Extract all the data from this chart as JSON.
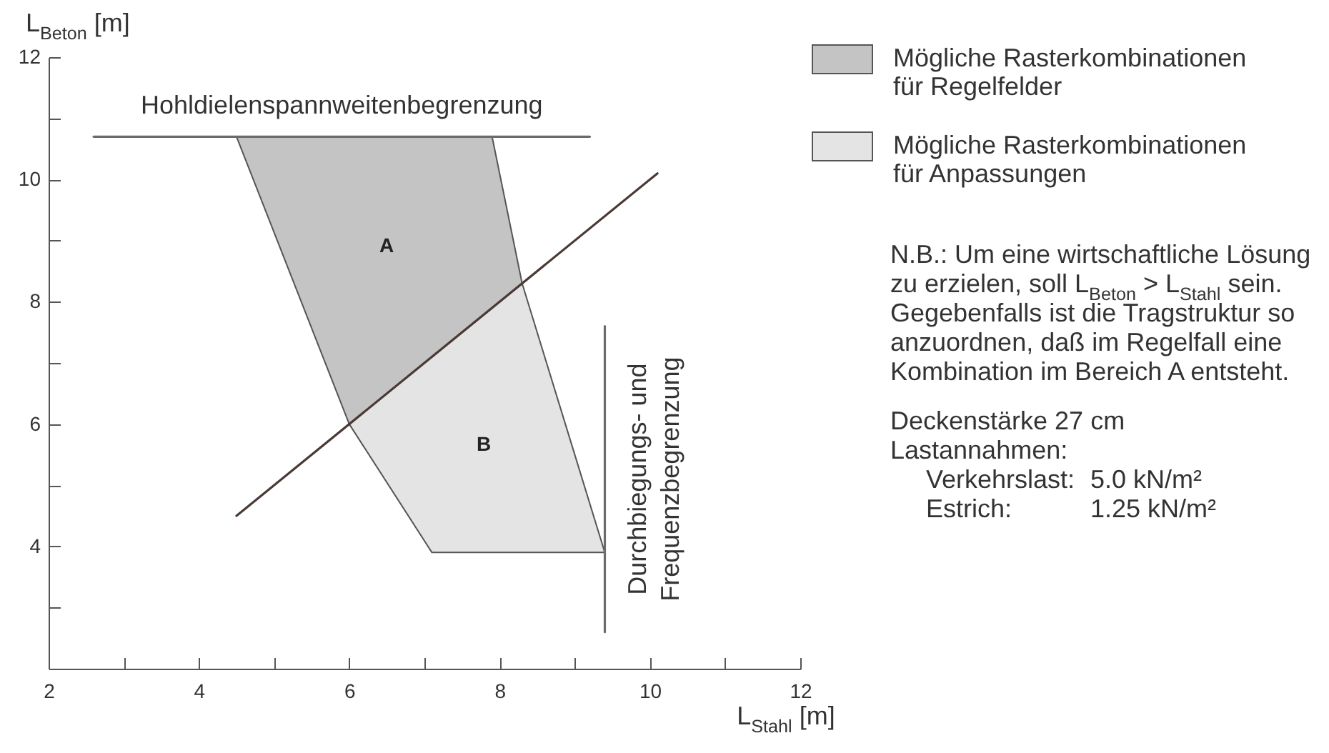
{
  "chart_data": {
    "type": "area",
    "xlabel": "L$_{Stahl}$ [m]",
    "ylabel": "L$_{Beton}$ [m]",
    "xlim": [
      2,
      12
    ],
    "ylim": [
      2,
      12
    ],
    "xticks": [
      2,
      {
        "value": 3,
        "label": null
      },
      4,
      {
        "value": 5,
        "label": null
      },
      6,
      {
        "value": 7,
        "label": null
      },
      8,
      {
        "value": 9,
        "label": null
      },
      10,
      {
        "value": 11,
        "label": null
      },
      12
    ],
    "yticks": [
      {
        "value": 3,
        "label": null
      },
      4,
      {
        "value": 5,
        "label": null
      },
      6,
      {
        "value": 7,
        "label": null
      },
      8,
      {
        "value": 9,
        "label": null
      },
      10,
      {
        "value": 11,
        "label": null
      },
      12
    ],
    "legend": "right",
    "series": [
      {
        "name": "Mögliche Rasterkombinationen für Regelfelder",
        "color": "#c4c4c4",
        "x": [
          4.5,
          6.0,
          7.9,
          8.3
        ],
        "values": [
          null,
          null,
          null,
          null
        ],
        "lower": [
          10.7,
          6.0,
          7.9,
          8.3
        ],
        "upper": [
          10.7,
          10.7,
          10.7,
          8.3
        ]
      },
      {
        "name": "Mögliche Rasterkombinationen für Anpassungen",
        "color": "#e4e4e4",
        "x": [
          6.0,
          7.1,
          8.3,
          8.9,
          9.4
        ],
        "values": [
          null,
          null,
          null,
          null,
          null
        ],
        "lower": [
          6.0,
          3.9,
          3.9,
          3.9,
          3.9
        ],
        "upper": [
          6.0,
          7.1,
          8.3,
          5.9,
          3.9
        ]
      },
      {
        "type": "line",
        "name": "Hohldielenspannweitenbegrenzung",
        "color": "#6b6b6b",
        "x": [
          2.6,
          9.2
        ],
        "values": [
          10.7,
          10.7
        ]
      },
      {
        "type": "line",
        "name": "Durchbiegungs- und Frequenzbegrenzung",
        "color": "#6b6b6b",
        "x": [
          9.4,
          9.4
        ],
        "values": [
          2.6,
          7.6
        ]
      },
      {
        "type": "line",
        "color": "#4a3a35",
        "x": [
          4.5,
          10.1
        ],
        "values": [
          4.5,
          10.1
        ]
      }
    ],
    "annotations": [
      "A",
      "B",
      "N.B.: Um eine wirtschaftliche Lösung zu erzielen, soll L$_{Beton}$ > L$_{Stahl}$ sein. Gegebenfalls ist die Tragstruktur so anzuordnen, daß im Regelfall eine Kombination im Bereich A entsteht.",
      "Deckenstärke 27 cm",
      "Lastannahmen:",
      "Verkehrslast: 5.0 kN/m²",
      "Estrich: 1.25 kN/m²"
    ]
  }
}
